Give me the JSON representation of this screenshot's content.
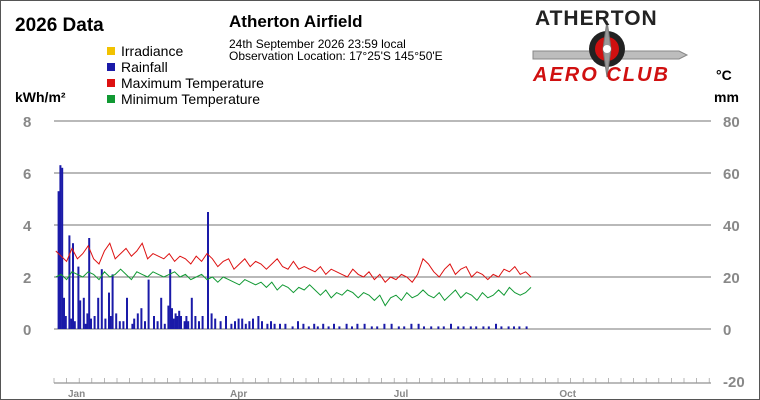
{
  "header": {
    "year_title": "2026 Data",
    "station": "Atherton Airfield",
    "datetime": "24th September 2026  23:59 local",
    "location": "Observation Location:   17°25'S 145°50'E"
  },
  "logo": {
    "line1": "ATHERTON",
    "line2": "AERO CLUB"
  },
  "units": {
    "left": "kWh/m²",
    "right_top": "°C",
    "right_bottom": "mm"
  },
  "legend": [
    {
      "label": "Irradiance",
      "color": "#f2c200"
    },
    {
      "label": "Rainfall",
      "color": "#1a1aa8"
    },
    {
      "label": "Maximum Temperature",
      "color": "#dd1111"
    },
    {
      "label": "Minimum Temperature",
      "color": "#119933"
    }
  ],
  "chart_data": {
    "type": "bar",
    "title": "2026 Data",
    "x_months": [
      "Jan",
      "Apr",
      "Jul",
      "Oct"
    ],
    "left_axis": {
      "label": "kWh/m²",
      "ticks": [
        8,
        6,
        4,
        2,
        0
      ],
      "ylim": [
        0,
        8
      ]
    },
    "right_axis": {
      "label": "°C / mm",
      "ticks": [
        80,
        60,
        40,
        20,
        0,
        -20
      ],
      "ylim": [
        -20,
        80
      ]
    },
    "series": [
      {
        "name": "Rainfall",
        "type": "bar",
        "axis": "right",
        "points": [
          [
            2,
            53
          ],
          [
            3,
            63
          ],
          [
            4,
            62
          ],
          [
            5,
            12
          ],
          [
            6,
            5
          ],
          [
            8,
            36
          ],
          [
            9,
            4
          ],
          [
            10,
            33
          ],
          [
            11,
            3
          ],
          [
            13,
            24
          ],
          [
            14,
            11
          ],
          [
            16,
            12
          ],
          [
            17,
            2
          ],
          [
            18,
            6
          ],
          [
            19,
            35
          ],
          [
            20,
            4
          ],
          [
            22,
            5
          ],
          [
            24,
            12
          ],
          [
            26,
            23
          ],
          [
            28,
            4
          ],
          [
            30,
            14
          ],
          [
            31,
            5
          ],
          [
            32,
            21
          ],
          [
            34,
            6
          ],
          [
            36,
            3
          ],
          [
            38,
            3
          ],
          [
            40,
            12
          ],
          [
            43,
            2
          ],
          [
            44,
            4
          ],
          [
            46,
            6
          ],
          [
            48,
            8
          ],
          [
            50,
            3
          ],
          [
            52,
            19
          ],
          [
            55,
            5
          ],
          [
            57,
            3
          ],
          [
            59,
            12
          ],
          [
            61,
            2
          ],
          [
            63,
            9
          ],
          [
            64,
            23
          ],
          [
            65,
            8
          ],
          [
            66,
            4
          ],
          [
            67,
            6
          ],
          [
            68,
            5
          ],
          [
            69,
            7
          ],
          [
            70,
            5
          ],
          [
            72,
            3
          ],
          [
            73,
            5
          ],
          [
            74,
            3
          ],
          [
            76,
            12
          ],
          [
            78,
            5
          ],
          [
            80,
            3
          ],
          [
            82,
            5
          ],
          [
            85,
            45
          ],
          [
            87,
            6
          ],
          [
            89,
            4
          ],
          [
            92,
            3
          ],
          [
            95,
            5
          ],
          [
            98,
            2
          ],
          [
            100,
            3
          ],
          [
            102,
            4
          ],
          [
            104,
            4
          ],
          [
            106,
            2
          ],
          [
            108,
            3
          ],
          [
            110,
            4
          ],
          [
            113,
            5
          ],
          [
            115,
            3
          ],
          [
            118,
            2
          ],
          [
            120,
            3
          ],
          [
            122,
            2
          ],
          [
            125,
            2
          ],
          [
            128,
            2
          ],
          [
            132,
            1
          ],
          [
            135,
            3
          ],
          [
            138,
            2
          ],
          [
            141,
            1
          ],
          [
            144,
            2
          ],
          [
            146,
            1
          ],
          [
            149,
            2
          ],
          [
            152,
            1
          ],
          [
            155,
            2
          ],
          [
            158,
            1
          ],
          [
            162,
            2
          ],
          [
            165,
            1
          ],
          [
            168,
            2
          ],
          [
            172,
            2
          ],
          [
            176,
            1
          ],
          [
            179,
            1
          ],
          [
            183,
            2
          ],
          [
            187,
            2
          ],
          [
            191,
            1
          ],
          [
            194,
            1
          ],
          [
            198,
            2
          ],
          [
            202,
            2
          ],
          [
            205,
            1
          ],
          [
            209,
            1
          ],
          [
            213,
            1
          ],
          [
            216,
            1
          ],
          [
            220,
            2
          ],
          [
            224,
            1
          ],
          [
            227,
            1
          ],
          [
            231,
            1
          ],
          [
            234,
            1
          ],
          [
            238,
            1
          ],
          [
            241,
            1
          ],
          [
            245,
            2
          ],
          [
            248,
            1
          ],
          [
            252,
            1
          ],
          [
            255,
            1
          ],
          [
            258,
            1
          ],
          [
            262,
            1
          ]
        ]
      },
      {
        "name": "Maximum Temperature",
        "type": "line",
        "axis": "right",
        "points": [
          [
            1,
            30
          ],
          [
            4,
            28
          ],
          [
            7,
            26
          ],
          [
            10,
            31
          ],
          [
            13,
            27
          ],
          [
            16,
            29
          ],
          [
            19,
            32
          ],
          [
            22,
            27
          ],
          [
            25,
            25
          ],
          [
            28,
            30
          ],
          [
            31,
            33
          ],
          [
            34,
            27
          ],
          [
            37,
            29
          ],
          [
            40,
            31
          ],
          [
            43,
            28
          ],
          [
            46,
            30
          ],
          [
            49,
            33
          ],
          [
            52,
            27
          ],
          [
            55,
            29
          ],
          [
            58,
            28
          ],
          [
            61,
            27
          ],
          [
            64,
            29
          ],
          [
            67,
            26
          ],
          [
            70,
            28
          ],
          [
            73,
            27
          ],
          [
            76,
            25
          ],
          [
            79,
            28
          ],
          [
            82,
            26
          ],
          [
            85,
            29
          ],
          [
            88,
            27
          ],
          [
            91,
            24
          ],
          [
            94,
            26
          ],
          [
            97,
            27
          ],
          [
            100,
            23
          ],
          [
            103,
            25
          ],
          [
            106,
            27
          ],
          [
            109,
            24
          ],
          [
            112,
            26
          ],
          [
            115,
            25
          ],
          [
            118,
            23
          ],
          [
            121,
            25
          ],
          [
            124,
            27
          ],
          [
            127,
            24
          ],
          [
            130,
            23
          ],
          [
            133,
            26
          ],
          [
            136,
            23
          ],
          [
            139,
            24
          ],
          [
            142,
            23
          ],
          [
            145,
            22
          ],
          [
            148,
            24
          ],
          [
            151,
            21
          ],
          [
            154,
            23
          ],
          [
            157,
            22
          ],
          [
            160,
            21
          ],
          [
            163,
            20
          ],
          [
            166,
            23
          ],
          [
            169,
            21
          ],
          [
            172,
            20
          ],
          [
            175,
            22
          ],
          [
            178,
            19
          ],
          [
            181,
            21
          ],
          [
            184,
            18
          ],
          [
            187,
            20
          ],
          [
            190,
            19
          ],
          [
            193,
            21
          ],
          [
            196,
            20
          ],
          [
            199,
            18
          ],
          [
            202,
            21
          ],
          [
            205,
            27
          ],
          [
            208,
            25
          ],
          [
            211,
            22
          ],
          [
            214,
            20
          ],
          [
            217,
            23
          ],
          [
            220,
            25
          ],
          [
            223,
            21
          ],
          [
            226,
            23
          ],
          [
            229,
            24
          ],
          [
            232,
            20
          ],
          [
            235,
            22
          ],
          [
            238,
            21
          ],
          [
            241,
            19
          ],
          [
            244,
            21
          ],
          [
            247,
            20
          ],
          [
            250,
            23
          ],
          [
            253,
            22
          ],
          [
            256,
            24
          ],
          [
            259,
            21
          ],
          [
            262,
            22
          ],
          [
            265,
            20
          ]
        ]
      },
      {
        "name": "Minimum Temperature",
        "type": "line",
        "axis": "right",
        "points": [
          [
            1,
            20
          ],
          [
            4,
            21
          ],
          [
            7,
            19
          ],
          [
            10,
            22
          ],
          [
            13,
            21
          ],
          [
            16,
            20
          ],
          [
            19,
            22
          ],
          [
            22,
            21
          ],
          [
            25,
            19
          ],
          [
            28,
            22
          ],
          [
            31,
            20
          ],
          [
            34,
            21
          ],
          [
            37,
            23
          ],
          [
            40,
            21
          ],
          [
            43,
            19
          ],
          [
            46,
            22
          ],
          [
            49,
            21
          ],
          [
            52,
            20
          ],
          [
            55,
            22
          ],
          [
            58,
            21
          ],
          [
            61,
            20
          ],
          [
            64,
            21
          ],
          [
            67,
            22
          ],
          [
            70,
            20
          ],
          [
            73,
            21
          ],
          [
            76,
            19
          ],
          [
            79,
            20
          ],
          [
            82,
            21
          ],
          [
            85,
            19
          ],
          [
            88,
            20
          ],
          [
            91,
            18
          ],
          [
            94,
            20
          ],
          [
            97,
            19
          ],
          [
            100,
            18
          ],
          [
            103,
            17
          ],
          [
            106,
            19
          ],
          [
            109,
            18
          ],
          [
            112,
            17
          ],
          [
            115,
            18
          ],
          [
            118,
            16
          ],
          [
            121,
            18
          ],
          [
            124,
            15
          ],
          [
            127,
            17
          ],
          [
            130,
            16
          ],
          [
            133,
            14
          ],
          [
            136,
            16
          ],
          [
            139,
            15
          ],
          [
            142,
            17
          ],
          [
            145,
            15
          ],
          [
            148,
            13
          ],
          [
            151,
            15
          ],
          [
            154,
            12
          ],
          [
            157,
            14
          ],
          [
            160,
            13
          ],
          [
            163,
            15
          ],
          [
            166,
            14
          ],
          [
            169,
            12
          ],
          [
            172,
            14
          ],
          [
            175,
            13
          ],
          [
            178,
            11
          ],
          [
            181,
            13
          ],
          [
            184,
            9
          ],
          [
            187,
            12
          ],
          [
            190,
            13
          ],
          [
            193,
            11
          ],
          [
            196,
            14
          ],
          [
            199,
            12
          ],
          [
            202,
            13
          ],
          [
            205,
            15
          ],
          [
            208,
            13
          ],
          [
            211,
            12
          ],
          [
            214,
            14
          ],
          [
            217,
            11
          ],
          [
            220,
            13
          ],
          [
            223,
            15
          ],
          [
            226,
            12
          ],
          [
            229,
            14
          ],
          [
            232,
            13
          ],
          [
            235,
            11
          ],
          [
            238,
            14
          ],
          [
            241,
            12
          ],
          [
            244,
            13
          ],
          [
            247,
            15
          ],
          [
            250,
            13
          ],
          [
            253,
            16
          ],
          [
            256,
            14
          ],
          [
            259,
            13
          ],
          [
            262,
            14
          ],
          [
            265,
            16
          ]
        ]
      }
    ]
  }
}
